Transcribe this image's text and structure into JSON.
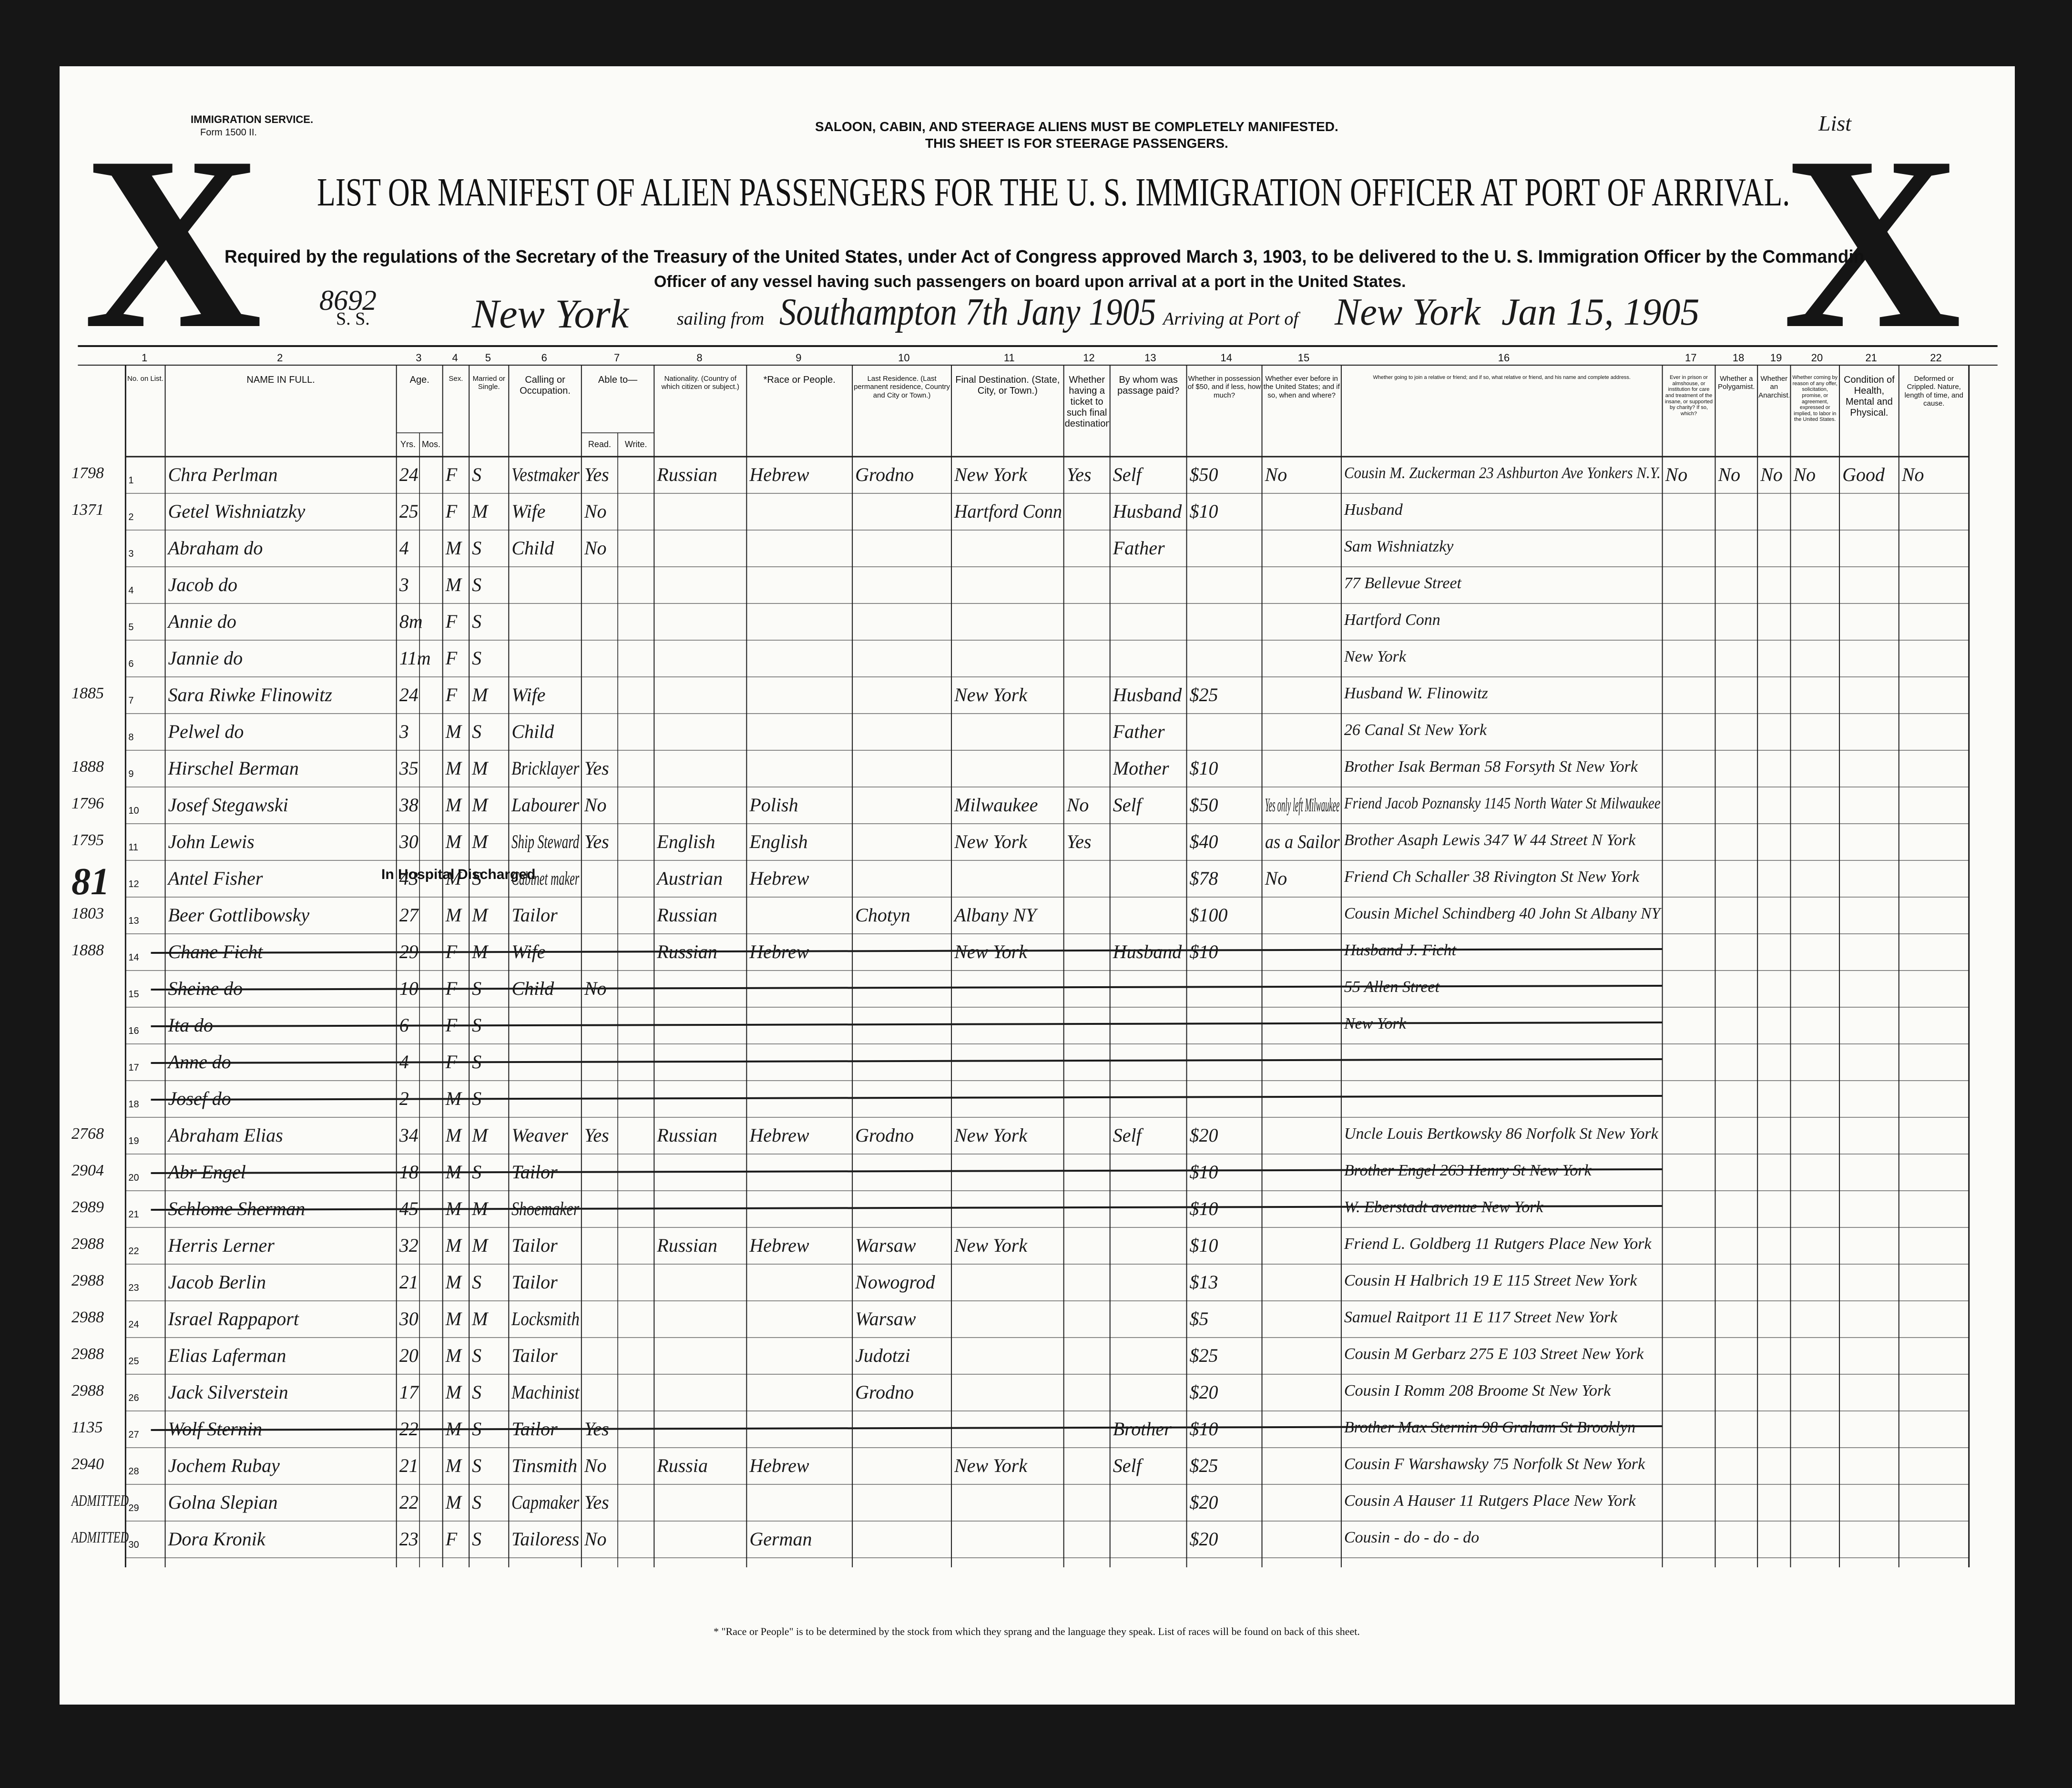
{
  "header": {
    "service": "IMMIGRATION SERVICE.",
    "form": "Form 1500 II.",
    "notice_1": "SALOON, CABIN, AND STEERAGE ALIENS MUST BE COMPLETELY MANIFESTED.",
    "notice_2": "THIS SHEET IS FOR STEERAGE PASSENGERS.",
    "list_label": "List",
    "x_mark": "X",
    "title": "LIST OR MANIFEST OF ALIEN PASSENGERS FOR THE U. S. IMMIGRATION OFFICER AT PORT OF ARRIVAL.",
    "regulation": "Required by the regulations of the Secretary of the Treasury of the United States, under Act of Congress approved March 3, 1903, to be delivered to the U. S. Immigration Officer by the Commandin",
    "regulation_2": "Officer of any vessel having such passengers on board upon arrival at a port in the United States.",
    "ss_label": "S. S.",
    "ship": "New York",
    "sailing_label": "sailing from",
    "sailing_from": "Southampton 7th Jany 1905",
    "arriving_label": "Arriving at Port of",
    "arriving_port": "New York",
    "arrival_date": "Jan 15, 1905",
    "sheet_number": "8692"
  },
  "columns": [
    {
      "number": "1",
      "label": "No. on List."
    },
    {
      "number": "2",
      "label": "NAME IN FULL."
    },
    {
      "number": "3",
      "label": "Age.",
      "sub": [
        "Yrs.",
        "Mos."
      ]
    },
    {
      "number": "4",
      "label": "Sex."
    },
    {
      "number": "5",
      "label": "Married or Single."
    },
    {
      "number": "6",
      "label": "Calling or Occupation."
    },
    {
      "number": "7",
      "label": "Able to—",
      "sub": [
        "Read.",
        "Write."
      ]
    },
    {
      "number": "8",
      "label": "Nationality. (Country of which citizen or subject.)"
    },
    {
      "number": "9",
      "label": "*Race or People."
    },
    {
      "number": "10",
      "label": "Last Residence. (Last permanent residence, Country and City or Town.)"
    },
    {
      "number": "11",
      "label": "Final Destination. (State, City, or Town.)"
    },
    {
      "number": "12",
      "label": "Whether having a ticket to such final destination."
    },
    {
      "number": "13",
      "label": "By whom was passage paid?"
    },
    {
      "number": "14",
      "label": "Whether in possession of $50, and if less, how much?"
    },
    {
      "number": "15",
      "label": "Whether ever before in the United States; and if so, when and where?"
    },
    {
      "number": "16",
      "label": "Whether going to join a relative or friend; and if so, what relative or friend, and his name and complete address."
    },
    {
      "number": "17",
      "label": "Ever in prison or almshouse, or institution for care and treatment of the insane, or supported by charity? If so, which?"
    },
    {
      "number": "18",
      "label": "Whether a Polygamist."
    },
    {
      "number": "19",
      "label": "Whether an Anarchist."
    },
    {
      "number": "20",
      "label": "Whether coming by reason of any offer, solicitation, promise, or agreement, expressed or implied, to labor in the United States."
    },
    {
      "number": "21",
      "label": "Condition of Health, Mental and Physical."
    },
    {
      "number": "22",
      "label": "Deformed or Crippled. Nature, length of time, and cause."
    }
  ],
  "rows": [
    {
      "margin": "1798",
      "no": "1",
      "name": "Chra Perlman",
      "age": "24",
      "sex": "F",
      "married": "S",
      "calling": "Vestmaker",
      "read": "Yes",
      "nationality": "Russian",
      "race": "Hebrew",
      "residence": "Grodno",
      "destination": "New York",
      "ticket": "Yes",
      "paid": "Self",
      "money": "$50",
      "before": "No",
      "relative": "Cousin M. Zuckerman 23 Ashburton Ave Yonkers N.Y.",
      "prison": "No",
      "polygamist": "No",
      "anarchist": "No",
      "contract": "No",
      "health": "Good",
      "deformed": "No"
    },
    {
      "margin": "1371",
      "no": "2",
      "name": "Getel Wishniatzky",
      "age": "25",
      "sex": "F",
      "married": "M",
      "calling": "Wife",
      "read": "No",
      "destination": "Hartford Conn",
      "paid": "Husband",
      "money": "$10",
      "relative": "Husband"
    },
    {
      "no": "3",
      "name": "Abraham do",
      "age": "4",
      "sex": "M",
      "married": "S",
      "calling": "Child",
      "read": "No",
      "paid": "Father",
      "relative": "Sam Wishniatzky"
    },
    {
      "no": "4",
      "name": "Jacob do",
      "age": "3",
      "sex": "M",
      "married": "S",
      "relative": "77 Bellevue Street"
    },
    {
      "no": "5",
      "name": "Annie do",
      "age": "8m",
      "sex": "F",
      "married": "S",
      "relative": "Hartford Conn"
    },
    {
      "no": "6",
      "name": "Jannie do",
      "age": "11m",
      "sex": "F",
      "married": "S",
      "relative": "New York"
    },
    {
      "margin": "1885",
      "no": "7",
      "name": "Sara Riwke Flinowitz",
      "age": "24",
      "sex": "F",
      "married": "M",
      "calling": "Wife",
      "destination": "New York",
      "paid": "Husband",
      "money": "$25",
      "relative": "Husband W. Flinowitz"
    },
    {
      "no": "8",
      "name": "Pelwel do",
      "age": "3",
      "sex": "M",
      "married": "S",
      "calling": "Child",
      "paid": "Father",
      "relative": "26 Canal St New York"
    },
    {
      "margin": "1888",
      "no": "9",
      "name": "Hirschel Berman",
      "age": "35",
      "sex": "M",
      "married": "M",
      "calling": "Bricklayer",
      "read": "Yes",
      "paid": "Mother",
      "money": "$10",
      "relative": "Brother Isak Berman 58 Forsyth St New York"
    },
    {
      "margin": "1796",
      "no": "10",
      "name": "Josef Stegawski",
      "age": "38",
      "sex": "M",
      "married": "M",
      "calling": "Labourer",
      "read": "No",
      "race": "Polish",
      "destination": "Milwaukee",
      "ticket": "No",
      "paid": "Self",
      "money": "$50",
      "before": "Yes only left Milwaukee",
      "relative": "Friend Jacob Poznansky 1145 North Water St Milwaukee"
    },
    {
      "margin": "1795",
      "no": "11",
      "name": "John Lewis",
      "age": "30",
      "sex": "M",
      "married": "M",
      "calling": "Ship Steward",
      "read": "Yes",
      "nationality": "English",
      "race": "English",
      "destination": "New York",
      "ticket": "Yes",
      "money": "$40",
      "before": "as a Sailor",
      "relative": "Brother Asaph Lewis 347 W 44 Street N York"
    },
    {
      "margin": "81",
      "no": "12",
      "name": "Antel Fisher",
      "age": "43",
      "sex": "M",
      "married": "S",
      "calling": "Cabinet maker",
      "nationality": "Austrian",
      "race": "Hebrew",
      "money": "$78",
      "before": "No",
      "relative": "Friend Ch Schaller 38 Rivington St New York"
    },
    {
      "margin": "1803",
      "no": "13",
      "name": "Beer Gottlibowsky",
      "age": "27",
      "sex": "M",
      "married": "M",
      "calling": "Tailor",
      "nationality": "Russian",
      "residence": "Chotyn",
      "destination": "Albany NY",
      "money": "$100",
      "relative": "Cousin Michel Schindberg 40 John St Albany NY"
    },
    {
      "margin": "1888",
      "no": "14",
      "name": "Chane Ficht",
      "age": "29",
      "sex": "F",
      "married": "M",
      "calling": "Wife",
      "nationality": "Russian",
      "race": "Hebrew",
      "destination": "New York",
      "paid": "Husband",
      "money": "$10",
      "relative": "Husband J. Ficht",
      "struck": true
    },
    {
      "no": "15",
      "name": "Sheine do",
      "age": "10",
      "sex": "F",
      "married": "S",
      "calling": "Child",
      "read": "No",
      "relative": "55 Allen Street",
      "struck": true
    },
    {
      "no": "16",
      "name": "Ita do",
      "age": "6",
      "sex": "F",
      "married": "S",
      "relative": "New York",
      "struck": true
    },
    {
      "no": "17",
      "name": "Anne do",
      "age": "4",
      "sex": "F",
      "married": "S",
      "struck": true
    },
    {
      "no": "18",
      "name": "Josef do",
      "age": "2",
      "sex": "M",
      "married": "S",
      "struck": true
    },
    {
      "margin": "2768",
      "no": "19",
      "name": "Abraham Elias",
      "age": "34",
      "sex": "M",
      "married": "M",
      "calling": "Weaver",
      "read": "Yes",
      "nationality": "Russian",
      "race": "Hebrew",
      "residence": "Grodno",
      "destination": "New York",
      "paid": "Self",
      "money": "$20",
      "relative": "Uncle Louis Bertkowsky 86 Norfolk St New York"
    },
    {
      "margin": "2904",
      "no": "20",
      "name": "Abr Engel",
      "age": "18",
      "sex": "M",
      "married": "S",
      "calling": "Tailor",
      "money": "$10",
      "relative": "Brother Engel 263 Henry St New York",
      "struck": true
    },
    {
      "margin": "2989",
      "no": "21",
      "name": "Schlome Sherman",
      "age": "45",
      "sex": "M",
      "married": "M",
      "calling": "Shoemaker",
      "money": "$10",
      "relative": "W. Eberstadt avenue New York",
      "struck": true
    },
    {
      "margin": "2988",
      "no": "22",
      "name": "Herris Lerner",
      "age": "32",
      "sex": "M",
      "married": "M",
      "calling": "Tailor",
      "nationality": "Russian",
      "race": "Hebrew",
      "residence": "Warsaw",
      "destination": "New York",
      "money": "$10",
      "relative": "Friend L. Goldberg 11 Rutgers Place New York"
    },
    {
      "margin": "2988",
      "no": "23",
      "name": "Jacob Berlin",
      "age": "21",
      "sex": "M",
      "married": "S",
      "calling": "Tailor",
      "residence": "Nowogrod",
      "money": "$13",
      "relative": "Cousin H Halbrich 19 E 115 Street New York"
    },
    {
      "margin": "2988",
      "no": "24",
      "name": "Israel Rappaport",
      "age": "30",
      "sex": "M",
      "married": "M",
      "calling": "Locksmith",
      "residence": "Warsaw",
      "money": "$5",
      "relative": "Samuel Raitport 11 E 117 Street New York"
    },
    {
      "margin": "2988",
      "no": "25",
      "name": "Elias Laferman",
      "age": "20",
      "sex": "M",
      "married": "S",
      "calling": "Tailor",
      "residence": "Judotzi",
      "money": "$25",
      "relative": "Cousin M Gerbarz 275 E 103 Street New York"
    },
    {
      "margin": "2988",
      "no": "26",
      "name": "Jack Silverstein",
      "age": "17",
      "sex": "M",
      "married": "S",
      "calling": "Machinist",
      "residence": "Grodno",
      "money": "$20",
      "relative": "Cousin I Romm 208 Broome St New York"
    },
    {
      "margin": "1135",
      "no": "27",
      "name": "Wolf Sternin",
      "age": "22",
      "sex": "M",
      "married": "S",
      "calling": "Tailor",
      "read": "Yes",
      "paid": "Brother",
      "money": "$10",
      "relative": "Brother Max Sternin 98 Graham St Brooklyn",
      "struck": true
    },
    {
      "margin": "2940",
      "no": "28",
      "name": "Jochem Rubay",
      "age": "21",
      "sex": "M",
      "married": "S",
      "calling": "Tinsmith",
      "read": "No",
      "nationality": "Russia",
      "race": "Hebrew",
      "destination": "New York",
      "paid": "Self",
      "money": "$25",
      "relative": "Cousin F Warshawsky 75 Norfolk St New York"
    },
    {
      "margin": "ADMITTED",
      "no": "29",
      "name": "Golna Slepian",
      "age": "22",
      "sex": "M",
      "married": "S",
      "calling": "Capmaker",
      "read": "Yes",
      "money": "$20",
      "relative": "Cousin A Hauser 11 Rutgers Place New York"
    },
    {
      "margin": "ADMITTED",
      "no": "30",
      "name": "Dora Kronik",
      "age": "23",
      "sex": "F",
      "married": "S",
      "calling": "Tailoress",
      "read": "No",
      "race": "German",
      "money": "$20",
      "relative": "Cousin - do - do - do"
    }
  ],
  "stamps": {
    "hospital": "In Hospital",
    "discharged": "Discharged"
  },
  "footnote": "* \"Race or People\" is to be determined by the stock from which they sprang and the language they speak. List of races will be found on back of this sheet."
}
